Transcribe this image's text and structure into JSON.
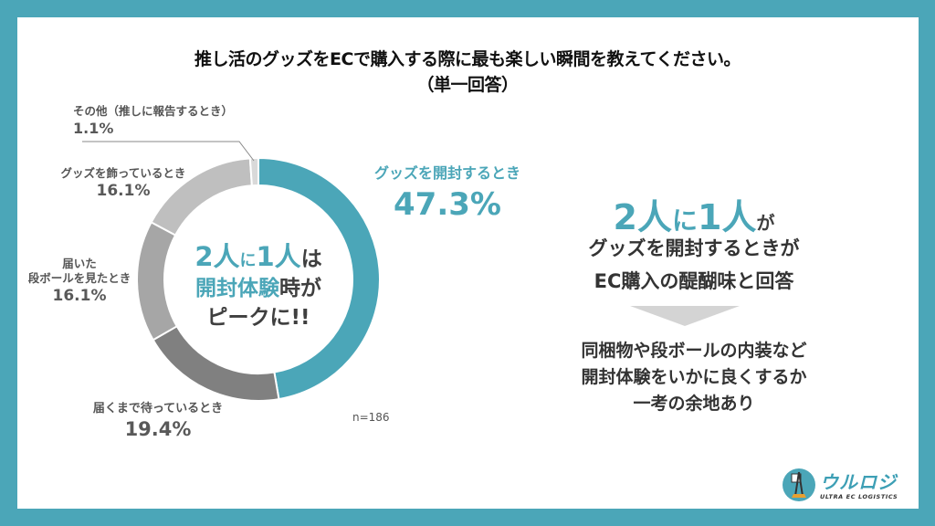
{
  "title": {
    "line1": "推し活のグッズをECで購入する際に最も楽しい瞬間を教えてください。",
    "line2": "（単一回答）"
  },
  "chart_data": {
    "type": "pie",
    "subtype": "donut",
    "title": "推し活のグッズをECで購入する際に最も楽しい瞬間を教えてください。（単一回答）",
    "categories": [
      "グッズを開封するとき",
      "届くまで待っているとき",
      "届いた段ボールを見たとき",
      "グッズを飾っているとき",
      "その他（推しに報告するとき）"
    ],
    "values": [
      47.3,
      19.4,
      16.1,
      16.1,
      1.1
    ],
    "unit": "%",
    "colors": [
      "#4ba6b8",
      "#808080",
      "#a6a6a6",
      "#bfbfbf",
      "#d9d9d9"
    ],
    "sample_size": "n=186",
    "center_annotation": "2人に1人は開封体験時がピークに!!"
  },
  "labels": {
    "open": {
      "name": "グッズを開封するとき",
      "pct": "47.3%"
    },
    "waiting": {
      "name": "届くまで待っているとき",
      "pct": "19.4%"
    },
    "box_line1": "届いた",
    "box_line2": "段ボールを見たとき",
    "box_pct": "16.1%",
    "display": {
      "name": "グッズを飾っているとき",
      "pct": "16.1%"
    },
    "other": {
      "name": "その他（推しに報告するとき）",
      "pct": "1.1%"
    }
  },
  "center": {
    "a": "2人",
    "b": "に",
    "c": "1人",
    "d": "は",
    "e": "開封体験",
    "f": "時が",
    "g": "ピークに!!"
  },
  "sample": "n=186",
  "summary": {
    "hl_a": "2人",
    "hl_b": "に",
    "hl_c": "1人",
    "hl_d": "が",
    "line2": "グッズを開封するときが",
    "line3": "EC購入の醍醐味と回答",
    "conclusion1": "同梱物や段ボールの内装など",
    "conclusion2": "開封体験をいかに良くするか",
    "conclusion3": "一考の余地あり"
  },
  "logo": {
    "name": "ウルロジ",
    "tagline": "ULTRA EC LOGISTICS"
  },
  "colors": {
    "frame": "#4ba6b8",
    "accent": "#4ba6b8"
  }
}
